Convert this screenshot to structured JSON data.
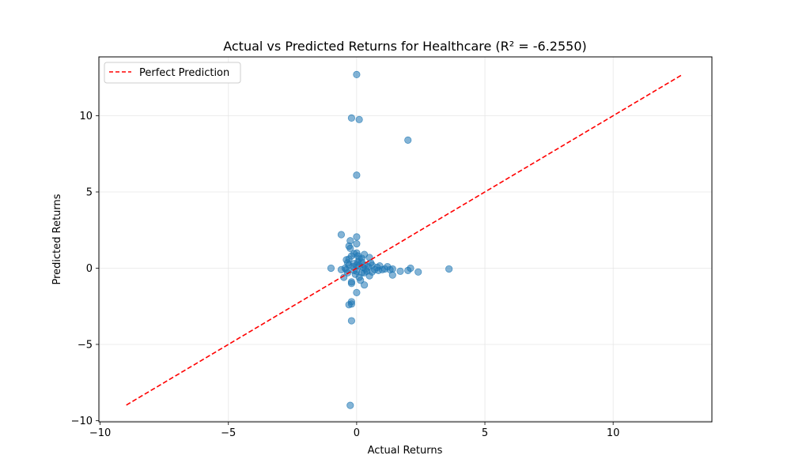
{
  "chart_data": {
    "type": "scatter",
    "title": "Actual vs Predicted Returns for Healthcare (R² = -6.2550)",
    "xlabel": "Actual Returns",
    "ylabel": "Predicted Returns",
    "xlim": [
      -10.05,
      13.85
    ],
    "ylim": [
      -10.08,
      13.86
    ],
    "xticks": [
      -10,
      -5,
      0,
      5,
      10
    ],
    "yticks": [
      -10,
      -5,
      0,
      5,
      10
    ],
    "grid": true,
    "legend_position": "top-left",
    "series": [
      {
        "kind": "points",
        "color": "#1f77b4",
        "points": [
          [
            0.0,
            12.7
          ],
          [
            -0.2,
            9.85
          ],
          [
            0.1,
            9.75
          ],
          [
            2.0,
            8.4
          ],
          [
            0.0,
            6.1
          ],
          [
            -0.6,
            2.2
          ],
          [
            0.0,
            2.05
          ],
          [
            -0.25,
            1.8
          ],
          [
            0.0,
            1.6
          ],
          [
            -0.3,
            1.45
          ],
          [
            -0.25,
            1.3
          ],
          [
            0.3,
            0.9
          ],
          [
            -0.1,
            0.95
          ],
          [
            0.0,
            1.0
          ],
          [
            0.5,
            0.7
          ],
          [
            -0.3,
            0.6
          ],
          [
            -0.4,
            0.55
          ],
          [
            -0.35,
            0.35
          ],
          [
            -0.2,
            0.8
          ],
          [
            0.1,
            0.6
          ],
          [
            0.2,
            0.4
          ],
          [
            -0.1,
            0.3
          ],
          [
            0.0,
            0.2
          ],
          [
            0.3,
            0.2
          ],
          [
            0.6,
            0.2
          ],
          [
            0.9,
            0.15
          ],
          [
            1.2,
            0.1
          ],
          [
            1.4,
            -0.05
          ],
          [
            1.7,
            -0.2
          ],
          [
            2.0,
            -0.15
          ],
          [
            2.1,
            0.0
          ],
          [
            2.4,
            -0.25
          ],
          [
            3.6,
            -0.05
          ],
          [
            1.4,
            -0.45
          ],
          [
            0.5,
            -0.5
          ],
          [
            0.3,
            -0.3
          ],
          [
            0.0,
            -0.2
          ],
          [
            -0.4,
            -0.1
          ],
          [
            -0.6,
            -0.1
          ],
          [
            -1.0,
            0.0
          ],
          [
            -0.5,
            -0.6
          ],
          [
            -0.2,
            -0.9
          ],
          [
            -0.2,
            -1.0
          ],
          [
            0.3,
            -1.1
          ],
          [
            0.0,
            -1.6
          ],
          [
            -0.2,
            -2.2
          ],
          [
            -0.2,
            -2.35
          ],
          [
            -0.3,
            -2.4
          ],
          [
            -0.2,
            -3.45
          ],
          [
            -0.25,
            -9.0
          ],
          [
            0.2,
            -0.3
          ],
          [
            0.4,
            -0.2
          ],
          [
            0.7,
            -0.1
          ],
          [
            1.0,
            -0.1
          ],
          [
            0.8,
            0.05
          ],
          [
            0.15,
            -0.8
          ],
          [
            0.05,
            0.4
          ],
          [
            -0.15,
            0.1
          ],
          [
            0.25,
            0.05
          ],
          [
            -0.05,
            -0.4
          ],
          [
            1.1,
            -0.05
          ],
          [
            1.3,
            -0.1
          ],
          [
            0.45,
            0.1
          ],
          [
            0.6,
            -0.25
          ],
          [
            0.85,
            -0.15
          ],
          [
            -0.3,
            0.2
          ],
          [
            -0.45,
            0.0
          ],
          [
            0.1,
            -0.6
          ],
          [
            0.35,
            -0.05
          ],
          [
            0.55,
            0.35
          ],
          [
            0.1,
            0.15
          ],
          [
            -0.1,
            -0.15
          ],
          [
            0.2,
            0.65
          ],
          [
            -0.35,
            -0.3
          ],
          [
            0.05,
            0.8
          ]
        ]
      },
      {
        "kind": "line",
        "name": "Perfect Prediction",
        "color": "#ff0000",
        "dash": "dashed",
        "points": [
          [
            -8.98,
            -8.98
          ],
          [
            12.7,
            12.7
          ]
        ]
      }
    ]
  }
}
